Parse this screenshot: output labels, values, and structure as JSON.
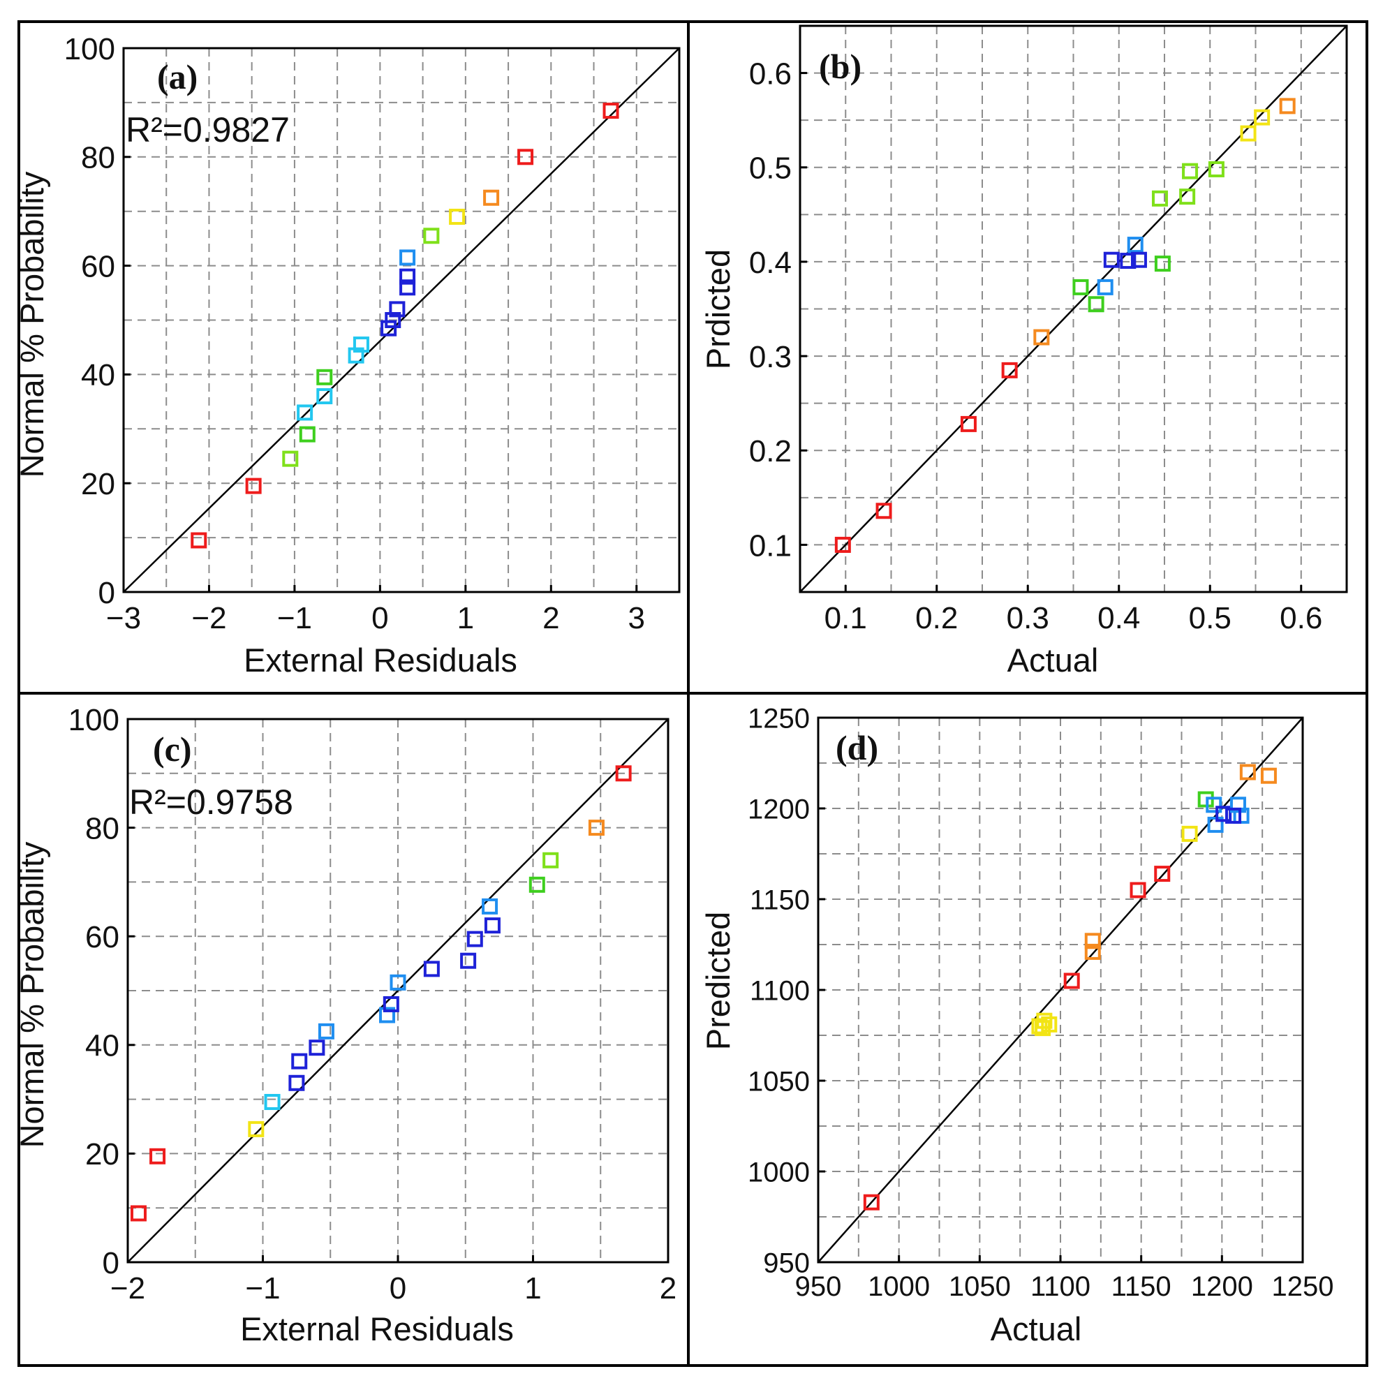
{
  "figure": {
    "colors": {
      "frame": "#000000",
      "grid": "#8c8c8c",
      "fit": "#000000"
    }
  },
  "chart_data": [
    {
      "id": "a",
      "type": "scatter",
      "panel_label": "(a)",
      "annotation": "R²=0.9827",
      "xlabel": "External Residuals",
      "ylabel": "Normal % Probability",
      "xlim": [
        -3,
        3.5
      ],
      "ylim": [
        0,
        100
      ],
      "xticks": [
        -3,
        -2,
        -1,
        0,
        1,
        2,
        3
      ],
      "xtick_labels": [
        "−3",
        "−2",
        "−1",
        "0",
        "1",
        "2",
        "3"
      ],
      "yticks": [
        0,
        20,
        40,
        60,
        80,
        100
      ],
      "ytick_labels": [
        "0",
        "20",
        "40",
        "60",
        "80",
        "100"
      ],
      "xgrid": [
        -2.5,
        -2,
        -1.5,
        -1,
        -0.5,
        0,
        0.5,
        1,
        1.5,
        2,
        2.5,
        3
      ],
      "ygrid": [
        10,
        20,
        30,
        40,
        50,
        60,
        70,
        80,
        90
      ],
      "fit_line": [
        [
          -3,
          0
        ],
        [
          3.5,
          100
        ]
      ],
      "points": [
        {
          "x": -2.12,
          "y": 9.5,
          "color": "#ee1c1c"
        },
        {
          "x": -1.48,
          "y": 19.5,
          "color": "#ee1c1c"
        },
        {
          "x": -1.05,
          "y": 24.5,
          "color": "#7fe01a"
        },
        {
          "x": -0.85,
          "y": 29.0,
          "color": "#3ecf1e"
        },
        {
          "x": -0.88,
          "y": 33.0,
          "color": "#22c7f0"
        },
        {
          "x": -0.65,
          "y": 36.0,
          "color": "#22c7f0"
        },
        {
          "x": -0.65,
          "y": 39.5,
          "color": "#3ecf1e"
        },
        {
          "x": -0.28,
          "y": 43.5,
          "color": "#22c7f0"
        },
        {
          "x": -0.22,
          "y": 45.5,
          "color": "#22c7f0"
        },
        {
          "x": 0.1,
          "y": 48.5,
          "color": "#1e22d8"
        },
        {
          "x": 0.15,
          "y": 50.0,
          "color": "#1e22d8"
        },
        {
          "x": 0.2,
          "y": 52.0,
          "color": "#1e22d8"
        },
        {
          "x": 0.32,
          "y": 56.0,
          "color": "#1e22d8"
        },
        {
          "x": 0.32,
          "y": 58.0,
          "color": "#1e22d8"
        },
        {
          "x": 0.32,
          "y": 61.5,
          "color": "#1f8ef0"
        },
        {
          "x": 0.6,
          "y": 65.5,
          "color": "#7fe01a"
        },
        {
          "x": 0.9,
          "y": 69.0,
          "color": "#f2e415"
        },
        {
          "x": 1.3,
          "y": 72.5,
          "color": "#f58a1f"
        },
        {
          "x": 1.7,
          "y": 80.0,
          "color": "#ee1c1c"
        },
        {
          "x": 2.7,
          "y": 88.5,
          "color": "#ee1c1c"
        }
      ]
    },
    {
      "id": "b",
      "type": "scatter",
      "panel_label": "(b)",
      "annotation": "",
      "xlabel": "Actual",
      "ylabel": "Prdicted",
      "xlim": [
        0.05,
        0.65
      ],
      "ylim": [
        0.05,
        0.65
      ],
      "xticks": [
        0.1,
        0.2,
        0.3,
        0.4,
        0.5,
        0.6
      ],
      "xtick_labels": [
        "0.1",
        "0.2",
        "0.3",
        "0.4",
        "0.5",
        "0.6"
      ],
      "yticks": [
        0.1,
        0.2,
        0.3,
        0.4,
        0.5,
        0.6
      ],
      "ytick_labels": [
        "0.1",
        "0.2",
        "0.3",
        "0.4",
        "0.5",
        "0.6"
      ],
      "xgrid": [
        0.1,
        0.15,
        0.2,
        0.25,
        0.3,
        0.35,
        0.4,
        0.45,
        0.5,
        0.55,
        0.6
      ],
      "ygrid": [
        0.1,
        0.15,
        0.2,
        0.25,
        0.3,
        0.35,
        0.4,
        0.45,
        0.5,
        0.55,
        0.6
      ],
      "fit_line": [
        [
          0.05,
          0.05
        ],
        [
          0.65,
          0.65
        ]
      ],
      "points": [
        {
          "x": 0.097,
          "y": 0.1,
          "color": "#ee1c1c"
        },
        {
          "x": 0.142,
          "y": 0.136,
          "color": "#ee1c1c"
        },
        {
          "x": 0.235,
          "y": 0.228,
          "color": "#ee1c1c"
        },
        {
          "x": 0.28,
          "y": 0.285,
          "color": "#ee1c1c"
        },
        {
          "x": 0.315,
          "y": 0.32,
          "color": "#f58a1f"
        },
        {
          "x": 0.358,
          "y": 0.373,
          "color": "#3ecf1e"
        },
        {
          "x": 0.375,
          "y": 0.355,
          "color": "#3ecf1e"
        },
        {
          "x": 0.385,
          "y": 0.373,
          "color": "#1f8ef0"
        },
        {
          "x": 0.392,
          "y": 0.402,
          "color": "#1e22d8"
        },
        {
          "x": 0.41,
          "y": 0.401,
          "color": "#1e22d8"
        },
        {
          "x": 0.418,
          "y": 0.418,
          "color": "#1f8ef0"
        },
        {
          "x": 0.422,
          "y": 0.402,
          "color": "#1e22d8"
        },
        {
          "x": 0.448,
          "y": 0.398,
          "color": "#3ecf1e"
        },
        {
          "x": 0.445,
          "y": 0.467,
          "color": "#7fe01a"
        },
        {
          "x": 0.475,
          "y": 0.469,
          "color": "#7fe01a"
        },
        {
          "x": 0.478,
          "y": 0.496,
          "color": "#7fe01a"
        },
        {
          "x": 0.507,
          "y": 0.498,
          "color": "#7fe01a"
        },
        {
          "x": 0.542,
          "y": 0.536,
          "color": "#f2e415"
        },
        {
          "x": 0.557,
          "y": 0.553,
          "color": "#f2e415"
        },
        {
          "x": 0.585,
          "y": 0.565,
          "color": "#f58a1f"
        }
      ]
    },
    {
      "id": "c",
      "type": "scatter",
      "panel_label": "(c)",
      "annotation": "R²=0.9758",
      "xlabel": "External Residuals",
      "ylabel": "Normal % Probability",
      "xlim": [
        -2,
        2
      ],
      "ylim": [
        0,
        100
      ],
      "xticks": [
        -2,
        -1,
        0,
        1,
        2
      ],
      "xtick_labels": [
        "−2",
        "−1",
        "0",
        "1",
        "2"
      ],
      "yticks": [
        0,
        20,
        40,
        60,
        80,
        100
      ],
      "ytick_labels": [
        "0",
        "20",
        "40",
        "60",
        "80",
        "100"
      ],
      "xgrid": [
        -1.5,
        -1,
        -0.5,
        0,
        0.5,
        1,
        1.5
      ],
      "ygrid": [
        10,
        20,
        30,
        40,
        50,
        60,
        70,
        80,
        90
      ],
      "fit_line": [
        [
          -2,
          0
        ],
        [
          2,
          100
        ]
      ],
      "points": [
        {
          "x": -1.92,
          "y": 9.0,
          "color": "#ee1c1c"
        },
        {
          "x": -1.78,
          "y": 19.5,
          "color": "#ee1c1c"
        },
        {
          "x": -1.05,
          "y": 24.5,
          "color": "#f2e415"
        },
        {
          "x": -0.93,
          "y": 29.5,
          "color": "#22c7f0"
        },
        {
          "x": -0.75,
          "y": 33.0,
          "color": "#1e22d8"
        },
        {
          "x": -0.73,
          "y": 37.0,
          "color": "#1e22d8"
        },
        {
          "x": -0.6,
          "y": 39.5,
          "color": "#1e22d8"
        },
        {
          "x": -0.53,
          "y": 42.5,
          "color": "#1f8ef0"
        },
        {
          "x": -0.08,
          "y": 45.5,
          "color": "#1f8ef0"
        },
        {
          "x": -0.05,
          "y": 47.5,
          "color": "#1e22d8"
        },
        {
          "x": 0.0,
          "y": 51.5,
          "color": "#1f8ef0"
        },
        {
          "x": 0.25,
          "y": 54.0,
          "color": "#1e22d8"
        },
        {
          "x": 0.52,
          "y": 55.5,
          "color": "#1e22d8"
        },
        {
          "x": 0.57,
          "y": 59.5,
          "color": "#1e22d8"
        },
        {
          "x": 0.7,
          "y": 62.0,
          "color": "#1e22d8"
        },
        {
          "x": 0.68,
          "y": 65.5,
          "color": "#1f8ef0"
        },
        {
          "x": 1.03,
          "y": 69.5,
          "color": "#3ecf1e"
        },
        {
          "x": 1.13,
          "y": 74.0,
          "color": "#7fe01a"
        },
        {
          "x": 1.47,
          "y": 80.0,
          "color": "#f58a1f"
        },
        {
          "x": 1.67,
          "y": 90.0,
          "color": "#ee1c1c"
        }
      ]
    },
    {
      "id": "d",
      "type": "scatter",
      "panel_label": "(d)",
      "annotation": "",
      "xlabel": "Actual",
      "ylabel": "Predicted",
      "xlim": [
        950,
        1250
      ],
      "ylim": [
        950,
        1250
      ],
      "xticks": [
        950,
        1000,
        1050,
        1100,
        1150,
        1200,
        1250
      ],
      "xtick_labels": [
        "950",
        "1000",
        "1050",
        "1100",
        "1150",
        "1200",
        "1250"
      ],
      "yticks": [
        950,
        1000,
        1050,
        1100,
        1150,
        1200,
        1250
      ],
      "ytick_labels": [
        "950",
        "1000",
        "1050",
        "1100",
        "1150",
        "1200",
        "1250"
      ],
      "xgrid": [
        975,
        1000,
        1025,
        1050,
        1075,
        1100,
        1125,
        1150,
        1175,
        1200,
        1225
      ],
      "ygrid": [
        975,
        1000,
        1025,
        1050,
        1075,
        1100,
        1125,
        1150,
        1175,
        1200,
        1225
      ],
      "fit_line": [
        [
          950,
          950
        ],
        [
          1250,
          1250
        ]
      ],
      "points": [
        {
          "x": 983,
          "y": 983,
          "color": "#ee1c1c"
        },
        {
          "x": 1087,
          "y": 1080,
          "color": "#f2e415"
        },
        {
          "x": 1090,
          "y": 1083,
          "color": "#f2e415"
        },
        {
          "x": 1093,
          "y": 1081,
          "color": "#f2e415"
        },
        {
          "x": 1089,
          "y": 1079,
          "color": "#f2e415"
        },
        {
          "x": 1107,
          "y": 1105,
          "color": "#ee1c1c"
        },
        {
          "x": 1120,
          "y": 1121,
          "color": "#f58a1f"
        },
        {
          "x": 1120,
          "y": 1127,
          "color": "#f58a1f"
        },
        {
          "x": 1148,
          "y": 1155,
          "color": "#ee1c1c"
        },
        {
          "x": 1163,
          "y": 1164,
          "color": "#ee1c1c"
        },
        {
          "x": 1180,
          "y": 1186,
          "color": "#f2e415"
        },
        {
          "x": 1190,
          "y": 1205,
          "color": "#3ecf1e"
        },
        {
          "x": 1195,
          "y": 1202,
          "color": "#1f8ef0"
        },
        {
          "x": 1196,
          "y": 1191,
          "color": "#1f8ef0"
        },
        {
          "x": 1201,
          "y": 1197,
          "color": "#1e22d8"
        },
        {
          "x": 1210,
          "y": 1202,
          "color": "#1f8ef0"
        },
        {
          "x": 1212,
          "y": 1196,
          "color": "#1f8ef0"
        },
        {
          "x": 1207,
          "y": 1196,
          "color": "#1e22d8"
        },
        {
          "x": 1216,
          "y": 1220,
          "color": "#f58a1f"
        },
        {
          "x": 1229,
          "y": 1218,
          "color": "#f58a1f"
        }
      ]
    }
  ]
}
